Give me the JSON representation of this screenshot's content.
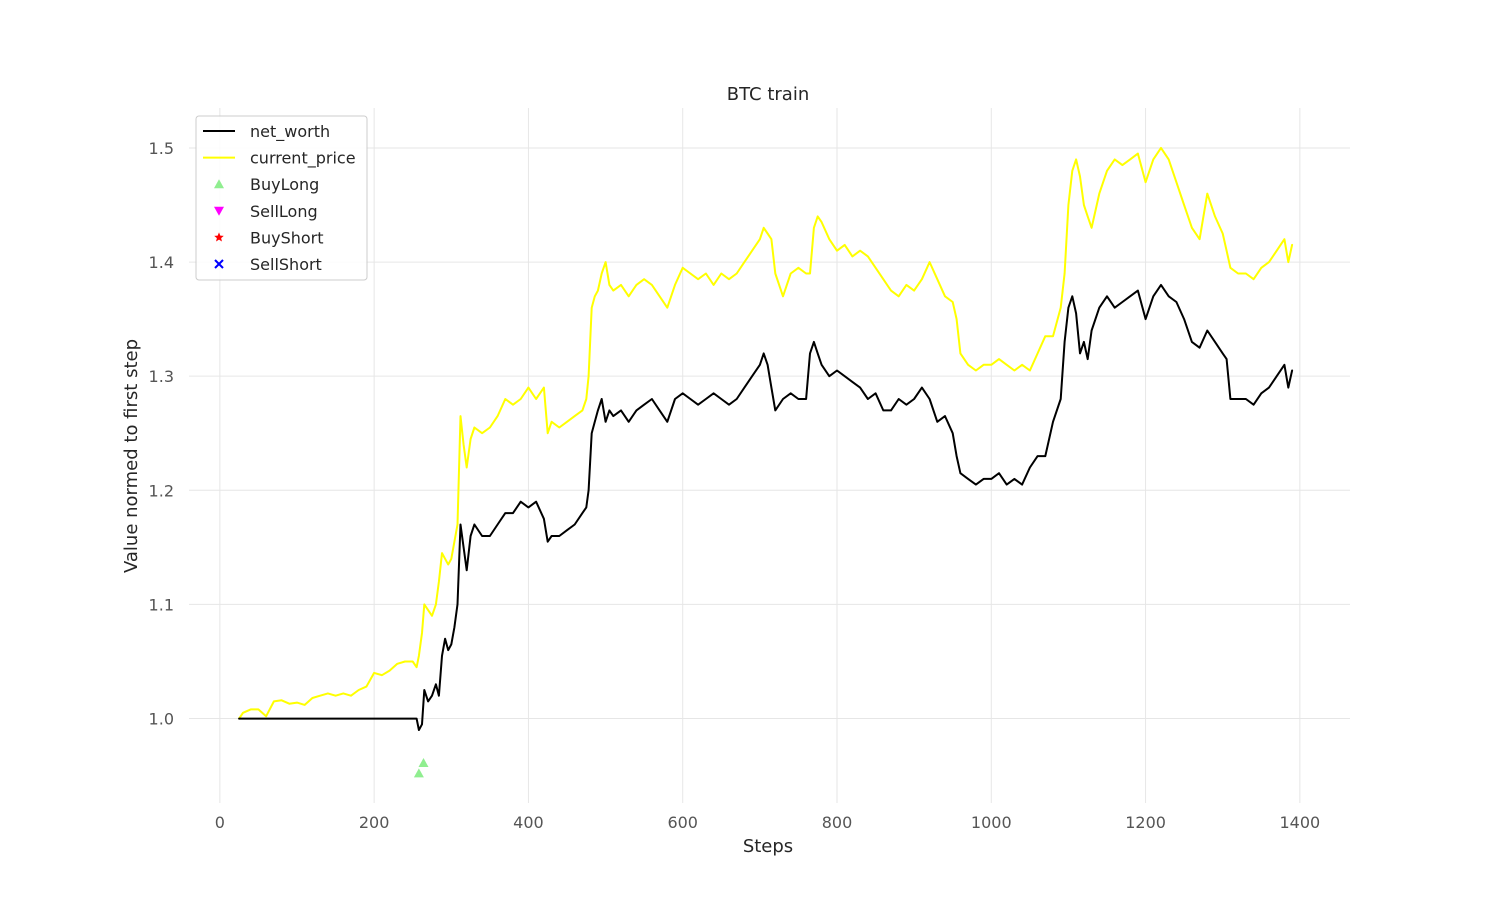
{
  "chart_data": {
    "type": "line",
    "title": "BTC train",
    "xlabel": "Steps",
    "ylabel": "Value normed to first step",
    "xlim": [
      -40,
      1465
    ],
    "ylim": [
      0.926,
      1.535
    ],
    "xticks": [
      0,
      200,
      400,
      600,
      800,
      1000,
      1200,
      1400
    ],
    "yticks": [
      1.0,
      1.1,
      1.2,
      1.3,
      1.4,
      1.5
    ],
    "ytick_labels": [
      "1.0",
      "1.1",
      "1.2",
      "1.3",
      "1.4",
      "1.5"
    ],
    "grid": true,
    "legend_position": "top-left",
    "series": [
      {
        "name": "net_worth",
        "color": "#000000",
        "kind": "line",
        "x": [
          25,
          60,
          100,
          150,
          200,
          255,
          258,
          262,
          265,
          270,
          275,
          280,
          284,
          288,
          292,
          296,
          300,
          304,
          308,
          312,
          316,
          320,
          325,
          330,
          340,
          350,
          360,
          370,
          380,
          390,
          400,
          410,
          420,
          425,
          430,
          440,
          450,
          460,
          470,
          475,
          478,
          482,
          486,
          490,
          495,
          500,
          505,
          510,
          520,
          530,
          540,
          550,
          560,
          570,
          580,
          590,
          600,
          610,
          620,
          630,
          640,
          650,
          660,
          670,
          680,
          690,
          700,
          705,
          710,
          715,
          720,
          730,
          740,
          750,
          760,
          765,
          770,
          775,
          780,
          790,
          800,
          810,
          820,
          830,
          840,
          850,
          860,
          870,
          880,
          890,
          900,
          910,
          920,
          930,
          940,
          950,
          955,
          960,
          970,
          980,
          990,
          1000,
          1010,
          1020,
          1030,
          1040,
          1050,
          1060,
          1070,
          1080,
          1090,
          1095,
          1100,
          1105,
          1110,
          1115,
          1120,
          1125,
          1130,
          1140,
          1150,
          1160,
          1170,
          1180,
          1190,
          1200,
          1210,
          1220,
          1230,
          1240,
          1250,
          1260,
          1270,
          1280,
          1290,
          1300,
          1305,
          1310,
          1320,
          1330,
          1340,
          1350,
          1360,
          1370,
          1380,
          1385,
          1390
        ],
        "y": [
          1.0,
          1.0,
          1.0,
          1.0,
          1.0,
          1.0,
          0.99,
          0.995,
          1.025,
          1.015,
          1.02,
          1.03,
          1.02,
          1.055,
          1.07,
          1.06,
          1.065,
          1.08,
          1.1,
          1.17,
          1.15,
          1.13,
          1.16,
          1.17,
          1.16,
          1.16,
          1.17,
          1.18,
          1.18,
          1.19,
          1.185,
          1.19,
          1.175,
          1.155,
          1.16,
          1.16,
          1.165,
          1.17,
          1.18,
          1.185,
          1.2,
          1.25,
          1.26,
          1.27,
          1.28,
          1.26,
          1.27,
          1.265,
          1.27,
          1.26,
          1.27,
          1.275,
          1.28,
          1.27,
          1.26,
          1.28,
          1.285,
          1.28,
          1.275,
          1.28,
          1.285,
          1.28,
          1.275,
          1.28,
          1.29,
          1.3,
          1.31,
          1.32,
          1.31,
          1.29,
          1.27,
          1.28,
          1.285,
          1.28,
          1.28,
          1.32,
          1.33,
          1.32,
          1.31,
          1.3,
          1.305,
          1.3,
          1.295,
          1.29,
          1.28,
          1.285,
          1.27,
          1.27,
          1.28,
          1.275,
          1.28,
          1.29,
          1.28,
          1.26,
          1.265,
          1.25,
          1.23,
          1.215,
          1.21,
          1.205,
          1.21,
          1.21,
          1.215,
          1.205,
          1.21,
          1.205,
          1.22,
          1.23,
          1.23,
          1.26,
          1.28,
          1.33,
          1.36,
          1.37,
          1.355,
          1.32,
          1.33,
          1.315,
          1.34,
          1.36,
          1.37,
          1.36,
          1.365,
          1.37,
          1.375,
          1.35,
          1.37,
          1.38,
          1.37,
          1.365,
          1.35,
          1.33,
          1.325,
          1.34,
          1.33,
          1.32,
          1.315,
          1.28,
          1.28,
          1.28,
          1.275,
          1.285,
          1.29,
          1.3,
          1.31,
          1.29,
          1.305
        ]
      },
      {
        "name": "current_price",
        "color": "#ffff00",
        "kind": "line",
        "x": [
          25,
          30,
          40,
          50,
          60,
          70,
          80,
          90,
          100,
          110,
          120,
          130,
          140,
          150,
          160,
          170,
          180,
          190,
          200,
          210,
          220,
          230,
          240,
          250,
          255,
          258,
          262,
          265,
          270,
          275,
          280,
          284,
          288,
          292,
          296,
          300,
          304,
          308,
          312,
          316,
          320,
          325,
          330,
          340,
          350,
          360,
          370,
          380,
          390,
          400,
          410,
          420,
          425,
          430,
          440,
          450,
          460,
          470,
          475,
          478,
          482,
          486,
          490,
          495,
          500,
          505,
          510,
          520,
          530,
          540,
          550,
          560,
          570,
          580,
          590,
          600,
          610,
          620,
          630,
          640,
          650,
          660,
          670,
          680,
          690,
          700,
          705,
          710,
          715,
          720,
          730,
          740,
          750,
          760,
          765,
          770,
          775,
          780,
          790,
          800,
          810,
          820,
          830,
          840,
          850,
          860,
          870,
          880,
          890,
          900,
          910,
          920,
          930,
          940,
          950,
          955,
          960,
          970,
          980,
          990,
          1000,
          1010,
          1020,
          1030,
          1040,
          1050,
          1060,
          1070,
          1080,
          1090,
          1095,
          1100,
          1105,
          1110,
          1115,
          1120,
          1125,
          1130,
          1140,
          1150,
          1160,
          1170,
          1180,
          1190,
          1200,
          1210,
          1220,
          1230,
          1240,
          1250,
          1260,
          1270,
          1280,
          1290,
          1300,
          1305,
          1310,
          1320,
          1330,
          1340,
          1350,
          1360,
          1370,
          1380,
          1385,
          1390
        ],
        "y": [
          1.0,
          1.005,
          1.008,
          1.008,
          1.002,
          1.015,
          1.016,
          1.013,
          1.014,
          1.012,
          1.018,
          1.02,
          1.022,
          1.02,
          1.022,
          1.02,
          1.025,
          1.028,
          1.04,
          1.038,
          1.042,
          1.048,
          1.05,
          1.05,
          1.045,
          1.055,
          1.075,
          1.1,
          1.095,
          1.09,
          1.1,
          1.12,
          1.145,
          1.14,
          1.135,
          1.14,
          1.155,
          1.17,
          1.265,
          1.24,
          1.22,
          1.245,
          1.255,
          1.25,
          1.255,
          1.265,
          1.28,
          1.275,
          1.28,
          1.29,
          1.28,
          1.29,
          1.25,
          1.26,
          1.255,
          1.26,
          1.265,
          1.27,
          1.28,
          1.3,
          1.36,
          1.37,
          1.375,
          1.39,
          1.4,
          1.38,
          1.375,
          1.38,
          1.37,
          1.38,
          1.385,
          1.38,
          1.37,
          1.36,
          1.38,
          1.395,
          1.39,
          1.385,
          1.39,
          1.38,
          1.39,
          1.385,
          1.39,
          1.4,
          1.41,
          1.42,
          1.43,
          1.425,
          1.42,
          1.39,
          1.37,
          1.39,
          1.395,
          1.39,
          1.39,
          1.43,
          1.44,
          1.435,
          1.42,
          1.41,
          1.415,
          1.405,
          1.41,
          1.405,
          1.395,
          1.385,
          1.375,
          1.37,
          1.38,
          1.375,
          1.385,
          1.4,
          1.385,
          1.37,
          1.365,
          1.35,
          1.32,
          1.31,
          1.305,
          1.31,
          1.31,
          1.315,
          1.31,
          1.305,
          1.31,
          1.305,
          1.32,
          1.335,
          1.335,
          1.36,
          1.39,
          1.45,
          1.48,
          1.49,
          1.475,
          1.45,
          1.44,
          1.43,
          1.46,
          1.48,
          1.49,
          1.485,
          1.49,
          1.495,
          1.47,
          1.49,
          1.5,
          1.49,
          1.47,
          1.45,
          1.43,
          1.42,
          1.46,
          1.44,
          1.425,
          1.41,
          1.395,
          1.39,
          1.39,
          1.385,
          1.395,
          1.4,
          1.41,
          1.42,
          1.4,
          1.415
        ]
      }
    ],
    "markers": [
      {
        "name": "BuyLong",
        "color": "#90ee90",
        "symbol": "triangle-up",
        "points": [
          [
            258,
            0.952
          ],
          [
            264,
            0.961
          ]
        ]
      },
      {
        "name": "SellLong",
        "color": "#ff00ff",
        "symbol": "triangle-down",
        "points": []
      },
      {
        "name": "BuyShort",
        "color": "#ff0000",
        "symbol": "star",
        "points": []
      },
      {
        "name": "SellShort",
        "color": "#0000ff",
        "symbol": "x",
        "points": []
      }
    ],
    "legend": [
      {
        "label": "net_worth",
        "color": "#000000",
        "symbol": "line"
      },
      {
        "label": "current_price",
        "color": "#ffff00",
        "symbol": "line"
      },
      {
        "label": "BuyLong",
        "color": "#90ee90",
        "symbol": "triangle-up"
      },
      {
        "label": "SellLong",
        "color": "#ff00ff",
        "symbol": "triangle-down"
      },
      {
        "label": "BuyShort",
        "color": "#ff0000",
        "symbol": "star"
      },
      {
        "label": "SellShort",
        "color": "#0000ff",
        "symbol": "x"
      }
    ]
  }
}
